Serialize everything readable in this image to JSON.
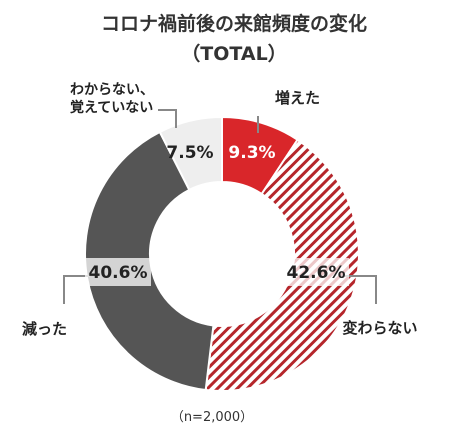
{
  "chart_data": {
    "type": "pie",
    "title": "コロナ禍前後の来館頻度の変化",
    "subtitle": "（TOTAL）",
    "note": "（n=2,000）",
    "slices": [
      {
        "label": "増えた",
        "value": 9.3,
        "display": "9.3%",
        "color": "#d9262a",
        "fill": "solid"
      },
      {
        "label": "変わらない",
        "value": 42.6,
        "display": "42.6%",
        "color": "#b5262b",
        "fill": "hatch"
      },
      {
        "label": "減った",
        "value": 40.6,
        "display": "40.6%",
        "color": "#555555",
        "fill": "solid"
      },
      {
        "label": "わからない、\n覚えていない",
        "value": 7.5,
        "display": "7.5%",
        "color": "#eeeeee",
        "fill": "solid"
      }
    ]
  }
}
